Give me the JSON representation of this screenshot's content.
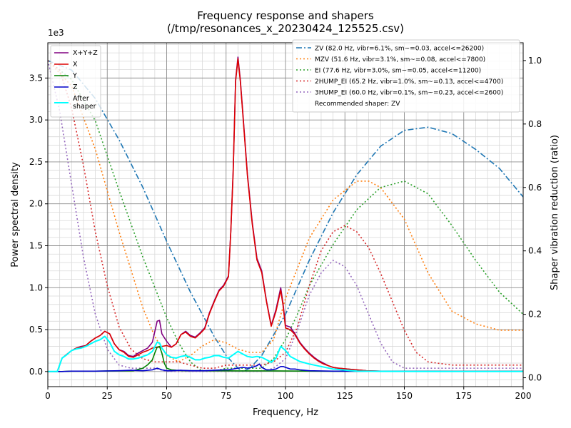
{
  "chart_data": {
    "type": "line",
    "title": "Frequency response and shapers",
    "subtitle": "(/tmp/resonances_x_20230424_125525.csv)",
    "xlabel": "Frequency, Hz",
    "ylabel": "Power spectral density",
    "y2label": "Shaper vibration reduction (ratio)",
    "y_multiplier": "1e3",
    "xlim": [
      0,
      200
    ],
    "ylim": [
      -0.18,
      3.92
    ],
    "y2lim": [
      -0.028,
      1.056
    ],
    "x_ticks": [
      "0",
      "25",
      "50",
      "75",
      "100",
      "125",
      "150",
      "175",
      "200"
    ],
    "y_ticks": [
      "0.0",
      "0.5",
      "1.0",
      "1.5",
      "2.0",
      "2.5",
      "3.0",
      "3.5"
    ],
    "y2_ticks": [
      "0.0",
      "0.2",
      "0.4",
      "0.6",
      "0.8",
      "1.0"
    ],
    "grid": true,
    "psd_legend": {
      "placement": "upper-left"
    },
    "shaper_legend": {
      "placement": "upper-right",
      "recommended": "Recommended shaper: ZV"
    },
    "psd_series": [
      {
        "name": "X+Y+Z",
        "color": "#800080",
        "width": 1.6,
        "x": [
          0,
          4,
          6,
          10,
          12,
          14,
          16,
          18,
          20,
          22,
          24,
          26,
          28,
          30,
          32,
          34,
          36,
          38,
          40,
          42,
          44,
          46,
          47,
          48,
          50,
          52,
          54,
          56,
          58,
          60,
          62,
          64,
          66,
          68,
          70,
          72,
          74,
          76,
          77,
          78,
          79,
          80,
          81,
          82,
          84,
          86,
          88,
          90,
          92,
          94,
          96,
          98,
          99,
          100,
          102,
          104,
          106,
          108,
          110,
          112,
          114,
          116,
          118,
          120,
          122,
          124,
          126,
          128,
          130,
          132,
          134,
          140,
          160,
          180,
          200
        ],
        "y": [
          0,
          0,
          0.16,
          0.25,
          0.28,
          0.3,
          0.31,
          0.36,
          0.4,
          0.43,
          0.48,
          0.45,
          0.33,
          0.26,
          0.24,
          0.19,
          0.18,
          0.22,
          0.25,
          0.28,
          0.35,
          0.6,
          0.61,
          0.45,
          0.36,
          0.29,
          0.33,
          0.44,
          0.48,
          0.43,
          0.41,
          0.46,
          0.52,
          0.7,
          0.84,
          0.97,
          1.03,
          1.14,
          1.68,
          2.4,
          3.48,
          3.75,
          3.48,
          3.1,
          2.35,
          1.78,
          1.35,
          1.2,
          0.84,
          0.55,
          0.74,
          1.0,
          0.8,
          0.55,
          0.53,
          0.45,
          0.35,
          0.28,
          0.22,
          0.17,
          0.13,
          0.1,
          0.07,
          0.05,
          0.04,
          0.035,
          0.03,
          0.025,
          0.02,
          0.015,
          0.01,
          0.005,
          0.003,
          0.002,
          0.002
        ]
      },
      {
        "name": "X",
        "color": "#dd0000",
        "width": 1.6,
        "x": [
          0,
          4,
          6,
          10,
          12,
          14,
          16,
          18,
          20,
          22,
          24,
          26,
          28,
          30,
          32,
          34,
          36,
          38,
          40,
          42,
          44,
          46,
          47,
          48,
          50,
          52,
          54,
          56,
          58,
          60,
          62,
          64,
          66,
          68,
          70,
          72,
          74,
          76,
          77,
          78,
          79,
          80,
          81,
          82,
          84,
          86,
          88,
          90,
          92,
          94,
          96,
          98,
          99,
          100,
          102,
          104,
          106,
          108,
          110,
          112,
          114,
          116,
          118,
          120,
          122,
          124,
          126,
          128,
          130,
          132,
          134,
          140,
          160,
          180,
          200
        ],
        "y": [
          0,
          0,
          0.16,
          0.25,
          0.28,
          0.29,
          0.31,
          0.36,
          0.4,
          0.43,
          0.48,
          0.45,
          0.33,
          0.26,
          0.23,
          0.18,
          0.17,
          0.2,
          0.23,
          0.25,
          0.28,
          0.29,
          0.29,
          0.3,
          0.31,
          0.29,
          0.33,
          0.44,
          0.47,
          0.42,
          0.4,
          0.45,
          0.51,
          0.69,
          0.83,
          0.96,
          1.02,
          1.13,
          1.67,
          2.38,
          3.46,
          3.73,
          3.46,
          3.08,
          2.33,
          1.76,
          1.33,
          1.18,
          0.83,
          0.54,
          0.72,
          0.97,
          0.78,
          0.52,
          0.5,
          0.44,
          0.34,
          0.27,
          0.21,
          0.16,
          0.12,
          0.09,
          0.07,
          0.05,
          0.04,
          0.035,
          0.03,
          0.025,
          0.02,
          0.015,
          0.01,
          0.005,
          0.003,
          0.002,
          0.002
        ]
      },
      {
        "name": "Y",
        "color": "#008000",
        "width": 1.6,
        "x": [
          0,
          6,
          10,
          20,
          30,
          36,
          40,
          42,
          44,
          45,
          46,
          47,
          48,
          49,
          50,
          52,
          54,
          56,
          60,
          70,
          80,
          90,
          100,
          120,
          140,
          160,
          180,
          200
        ],
        "y": [
          0,
          0,
          0.005,
          0.005,
          0.008,
          0.01,
          0.04,
          0.08,
          0.14,
          0.22,
          0.29,
          0.3,
          0.22,
          0.1,
          0.04,
          0.02,
          0.015,
          0.012,
          0.01,
          0.01,
          0.008,
          0.008,
          0.006,
          0.004,
          0.003,
          0.002,
          0.001,
          0.001
        ]
      },
      {
        "name": "Z",
        "color": "#0000cc",
        "width": 1.6,
        "x": [
          0,
          6,
          10,
          20,
          30,
          35,
          40,
          44,
          46,
          47,
          48,
          50,
          52,
          56,
          60,
          66,
          70,
          74,
          76,
          78,
          80,
          82,
          84,
          86,
          88,
          89,
          90,
          92,
          94,
          96,
          98,
          99,
          100,
          102,
          104,
          106,
          110,
          120,
          140,
          160,
          180,
          200
        ],
        "y": [
          0,
          0,
          0.005,
          0.005,
          0.01,
          0.015,
          0.01,
          0.02,
          0.04,
          0.03,
          0.02,
          0.01,
          0.01,
          0.015,
          0.01,
          0.01,
          0.015,
          0.02,
          0.02,
          0.03,
          0.04,
          0.05,
          0.04,
          0.05,
          0.07,
          0.09,
          0.05,
          0.02,
          0.02,
          0.03,
          0.06,
          0.06,
          0.05,
          0.03,
          0.03,
          0.02,
          0.01,
          0.005,
          0.003,
          0.002,
          0.001,
          0.001
        ]
      },
      {
        "name": "After\nshaper",
        "color": "#00ffff",
        "width": 2,
        "x": [
          0,
          4,
          6,
          8,
          10,
          12,
          14,
          16,
          18,
          20,
          22,
          24,
          26,
          28,
          30,
          32,
          34,
          36,
          38,
          40,
          42,
          44,
          46,
          47,
          48,
          50,
          52,
          54,
          56,
          58,
          60,
          62,
          64,
          66,
          68,
          70,
          72,
          74,
          76,
          78,
          80,
          82,
          84,
          86,
          88,
          90,
          92,
          94,
          96,
          98,
          100,
          102,
          104,
          106,
          110,
          120,
          130,
          140,
          160,
          180,
          200
        ],
        "y": [
          0,
          0,
          0.16,
          0.2,
          0.25,
          0.27,
          0.28,
          0.3,
          0.33,
          0.36,
          0.38,
          0.42,
          0.35,
          0.24,
          0.2,
          0.18,
          0.15,
          0.15,
          0.16,
          0.18,
          0.2,
          0.24,
          0.35,
          0.34,
          0.28,
          0.2,
          0.17,
          0.16,
          0.18,
          0.19,
          0.17,
          0.14,
          0.14,
          0.16,
          0.17,
          0.19,
          0.19,
          0.17,
          0.16,
          0.2,
          0.24,
          0.21,
          0.18,
          0.17,
          0.18,
          0.17,
          0.14,
          0.11,
          0.16,
          0.3,
          0.25,
          0.18,
          0.15,
          0.12,
          0.09,
          0.03,
          0.005,
          0.002,
          0.001,
          0.001,
          0.001
        ]
      }
    ],
    "shaper_series": [
      {
        "name": "ZV (82.0 Hz, vibr=6.1%, sm~=0.03, accel<=26200)",
        "color": "#1f77b4",
        "dash": "8,3,2,3",
        "x": [
          0,
          10,
          20,
          30,
          40,
          50,
          60,
          70,
          75,
          80,
          82,
          85,
          90,
          100,
          110,
          120,
          130,
          140,
          150,
          160,
          170,
          180,
          190,
          200
        ],
        "y": [
          1.0,
          0.97,
          0.88,
          0.75,
          0.6,
          0.43,
          0.27,
          0.13,
          0.07,
          0.03,
          0.02,
          0.03,
          0.07,
          0.2,
          0.37,
          0.52,
          0.64,
          0.73,
          0.78,
          0.79,
          0.77,
          0.72,
          0.66,
          0.57
        ]
      },
      {
        "name": "MZV (51.6 Hz, vibr=3.1%, sm~=0.08, accel<=7800)",
        "color": "#ff7f0e",
        "dash": "2,3",
        "x": [
          0,
          10,
          20,
          30,
          40,
          45,
          50,
          55,
          60,
          65,
          70,
          75,
          80,
          85,
          90,
          95,
          100,
          110,
          120,
          130,
          135,
          140,
          150,
          160,
          170,
          180,
          190,
          200
        ],
        "y": [
          1.0,
          0.92,
          0.72,
          0.46,
          0.22,
          0.13,
          0.07,
          0.05,
          0.07,
          0.1,
          0.12,
          0.11,
          0.09,
          0.08,
          0.08,
          0.12,
          0.25,
          0.44,
          0.56,
          0.62,
          0.62,
          0.6,
          0.5,
          0.33,
          0.21,
          0.17,
          0.15,
          0.15
        ]
      },
      {
        "name": "EI (77.6 Hz, vibr=3.0%, sm~=0.05, accel<=11200)",
        "color": "#2ca02c",
        "dash": "2,3",
        "x": [
          0,
          10,
          20,
          30,
          40,
          50,
          55,
          60,
          65,
          70,
          75,
          80,
          85,
          90,
          95,
          100,
          105,
          110,
          120,
          130,
          140,
          150,
          160,
          170,
          180,
          190,
          200
        ],
        "y": [
          1.0,
          0.94,
          0.81,
          0.59,
          0.38,
          0.19,
          0.11,
          0.05,
          0.02,
          0.02,
          0.03,
          0.03,
          0.03,
          0.03,
          0.06,
          0.12,
          0.2,
          0.29,
          0.42,
          0.53,
          0.6,
          0.62,
          0.58,
          0.48,
          0.37,
          0.27,
          0.2
        ]
      },
      {
        "name": "2HUMP_EI (65.2 Hz, vibr=1.0%, sm~=0.13, accel<=4700)",
        "color": "#d62728",
        "dash": "2,3",
        "x": [
          0,
          5,
          10,
          15,
          20,
          25,
          30,
          35,
          40,
          45,
          50,
          55,
          60,
          65,
          70,
          75,
          80,
          85,
          90,
          95,
          100,
          105,
          110,
          115,
          120,
          125,
          130,
          135,
          140,
          145,
          150,
          155,
          160,
          170,
          180,
          190,
          200
        ],
        "y": [
          1.0,
          0.97,
          0.85,
          0.67,
          0.46,
          0.29,
          0.16,
          0.09,
          0.06,
          0.05,
          0.05,
          0.05,
          0.04,
          0.03,
          0.03,
          0.04,
          0.04,
          0.04,
          0.04,
          0.05,
          0.08,
          0.16,
          0.29,
          0.4,
          0.46,
          0.48,
          0.46,
          0.41,
          0.33,
          0.24,
          0.15,
          0.08,
          0.05,
          0.04,
          0.04,
          0.04,
          0.04
        ]
      },
      {
        "name": "3HUMP_EI (60.0 Hz, vibr=0.1%, sm~=0.23, accel<=2600)",
        "color": "#9467bd",
        "dash": "2,3",
        "x": [
          0,
          5,
          10,
          15,
          20,
          25,
          30,
          35,
          40,
          45,
          50,
          55,
          60,
          65,
          70,
          75,
          80,
          85,
          90,
          95,
          100,
          105,
          110,
          115,
          120,
          125,
          130,
          135,
          140,
          145,
          150,
          160,
          170,
          180,
          200
        ],
        "y": [
          1.0,
          0.84,
          0.61,
          0.38,
          0.2,
          0.09,
          0.04,
          0.03,
          0.03,
          0.03,
          0.02,
          0.02,
          0.02,
          0.02,
          0.02,
          0.02,
          0.02,
          0.02,
          0.02,
          0.03,
          0.06,
          0.15,
          0.26,
          0.33,
          0.37,
          0.35,
          0.29,
          0.2,
          0.11,
          0.05,
          0.03,
          0.03,
          0.03,
          0.03,
          0.03
        ]
      }
    ]
  }
}
